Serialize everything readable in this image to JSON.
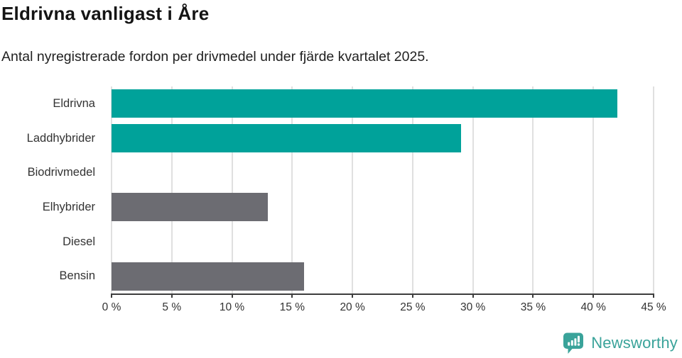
{
  "title": "Eldrivna vanligast i Åre",
  "subtitle": "Antal nyregistrerade fordon per drivmedel under fjärde kvartalet 2025.",
  "chart_data": {
    "type": "bar",
    "orientation": "horizontal",
    "title": "Eldrivna vanligast i Åre",
    "subtitle": "Antal nyregistrerade fordon per drivmedel under fjärde kvartalet 2025.",
    "categories": [
      "Eldrivna",
      "Laddhybrider",
      "Biodrivmedel",
      "Elhybrider",
      "Diesel",
      "Bensin"
    ],
    "values": [
      42,
      29,
      0,
      13,
      0,
      16
    ],
    "value_unit": "%",
    "xlim": [
      0,
      45
    ],
    "x_ticks": [
      0,
      5,
      10,
      15,
      20,
      25,
      30,
      35,
      40,
      45
    ],
    "x_tick_labels": [
      "0 %",
      "5 %",
      "10 %",
      "15 %",
      "20 %",
      "25 %",
      "30 %",
      "35 %",
      "40 %",
      "45 %"
    ],
    "grid": "vertical",
    "legend": "none",
    "bar_colors": [
      "#00a29a",
      "#00a29a",
      "#6c6c72",
      "#6c6c72",
      "#6c6c72",
      "#6c6c72"
    ]
  },
  "colors": {
    "highlight_teal": "#00a29a",
    "neutral_gray": "#6c6c72",
    "gridline": "#e0e0e0",
    "axis_line": "#3d3d3d",
    "title_text": "#141414",
    "label_text": "#333333",
    "brand_teal": "#3aa39a"
  },
  "footer": {
    "brand": "Newsworthy"
  }
}
